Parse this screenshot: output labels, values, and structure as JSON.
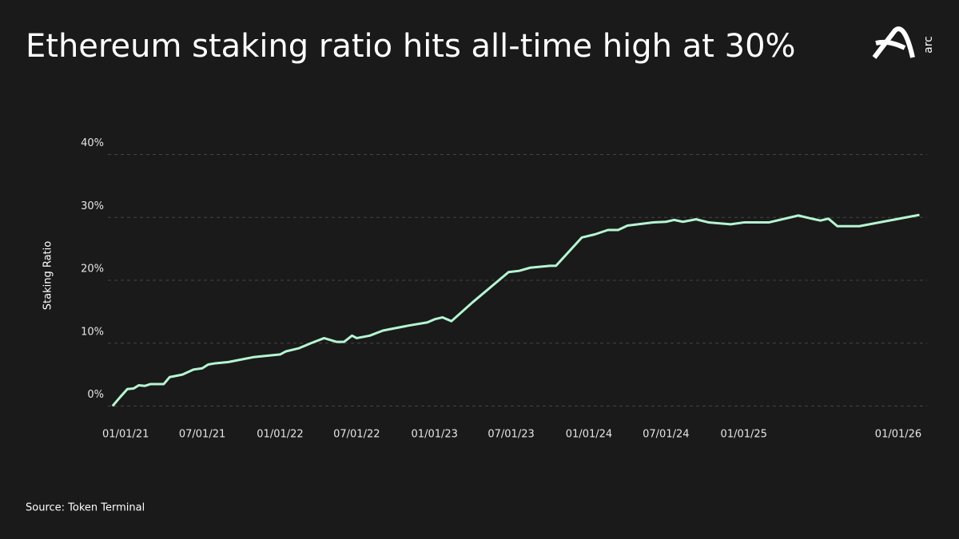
{
  "brand": "arc",
  "chart_data": {
    "type": "line",
    "title": "Ethereum staking ratio hits all-time high at 30%",
    "y_label": "Staking Ratio",
    "source": "Source: Token Terminal",
    "x": [
      "2020-12-01",
      "2020-12-20",
      "2021-01-05",
      "2021-01-20",
      "2021-02-01",
      "2021-02-15",
      "2021-03-01",
      "2021-04-01",
      "2021-04-15",
      "2021-05-15",
      "2021-06-10",
      "2021-07-01",
      "2021-07-15",
      "2021-08-01",
      "2021-09-01",
      "2021-10-01",
      "2021-11-01",
      "2021-12-01",
      "2022-01-01",
      "2022-01-15",
      "2022-02-15",
      "2022-03-15",
      "2022-04-15",
      "2022-05-15",
      "2022-06-01",
      "2022-06-20",
      "2022-07-01",
      "2022-08-01",
      "2022-09-01",
      "2022-10-01",
      "2022-11-01",
      "2022-12-15",
      "2023-01-01",
      "2023-01-20",
      "2023-02-10",
      "2023-04-01",
      "2023-06-25",
      "2023-07-20",
      "2023-08-15",
      "2023-10-01",
      "2023-10-15",
      "2023-12-15",
      "2024-01-15",
      "2024-02-15",
      "2024-03-10",
      "2024-04-01",
      "2024-06-01",
      "2024-07-01",
      "2024-07-20",
      "2024-08-10",
      "2024-09-10",
      "2024-10-10",
      "2024-12-01",
      "2025-01-01",
      "2025-03-01",
      "2025-05-10",
      "2025-06-10",
      "2025-07-01",
      "2025-07-20",
      "2025-08-10",
      "2025-09-01",
      "2025-10-01",
      "2026-02-20"
    ],
    "series": [
      {
        "name": "Staking Ratio",
        "color": "#b6f5d2",
        "values": [
          0,
          1.5,
          2.7,
          2.8,
          3.3,
          3.2,
          3.5,
          3.5,
          4.6,
          5.0,
          5.8,
          6.0,
          6.6,
          6.8,
          7.0,
          7.4,
          7.8,
          8.0,
          8.2,
          8.7,
          9.2,
          10.0,
          10.8,
          10.2,
          10.2,
          11.2,
          10.8,
          11.2,
          12.0,
          12.4,
          12.8,
          13.3,
          13.8,
          14.1,
          13.5,
          16.5,
          21.3,
          21.5,
          22.0,
          22.3,
          22.3,
          26.8,
          27.3,
          28.0,
          28.0,
          28.7,
          29.2,
          29.3,
          29.6,
          29.3,
          29.7,
          29.2,
          28.9,
          29.2,
          29.2,
          30.3,
          29.8,
          29.5,
          29.8,
          28.6,
          28.6,
          28.6,
          30.4
        ]
      }
    ],
    "xlim": [
      "2020-11-20",
      "2026-03-10"
    ],
    "xticks": [
      {
        "value": "2021-01-01",
        "label": "01/01/21"
      },
      {
        "value": "2021-07-01",
        "label": "07/01/21"
      },
      {
        "value": "2022-01-01",
        "label": "01/01/22"
      },
      {
        "value": "2022-07-01",
        "label": "07/01/22"
      },
      {
        "value": "2023-01-01",
        "label": "01/01/23"
      },
      {
        "value": "2023-07-01",
        "label": "07/01/23"
      },
      {
        "value": "2024-01-01",
        "label": "01/01/24"
      },
      {
        "value": "2024-07-01",
        "label": "07/01/24"
      },
      {
        "value": "2025-01-01",
        "label": "01/01/25"
      },
      {
        "value": "2026-01-01",
        "label": "01/01/26"
      }
    ],
    "ylim": [
      -4,
      44
    ],
    "yticks": [
      {
        "value": 0,
        "label": "0%"
      },
      {
        "value": 10,
        "label": "10%"
      },
      {
        "value": 20,
        "label": "20%"
      },
      {
        "value": 30,
        "label": "30%"
      },
      {
        "value": 40,
        "label": "40%"
      }
    ],
    "grid": true
  }
}
